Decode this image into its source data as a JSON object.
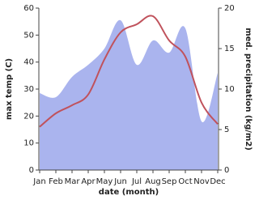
{
  "chart_data": {
    "type": "line",
    "x_label": "date (month)",
    "y_label": "max temp (C)",
    "y2_label": "med. precipitation (kg/m2)",
    "categories": [
      "Jan",
      "Feb",
      "Mar",
      "Apr",
      "May",
      "Jun",
      "Jul",
      "Aug",
      "Sep",
      "Oct",
      "Nov",
      "Dec"
    ],
    "series": [
      {
        "name": "med. precipitation",
        "type": "area",
        "axis": "y2",
        "color": "#aab4ee",
        "values": [
          9.5,
          9,
          11.5,
          13,
          15,
          18.5,
          13,
          16,
          14.5,
          17.5,
          6,
          12
        ]
      },
      {
        "name": "max temp",
        "type": "line",
        "color": "#c0525c",
        "values": [
          16,
          21,
          24,
          28,
          41,
          51,
          54,
          57,
          48,
          42,
          25,
          17
        ]
      }
    ],
    "ylim": [
      0,
      60
    ],
    "yticks": [
      0,
      10,
      20,
      30,
      40,
      50,
      60
    ],
    "y2lim": [
      0,
      20
    ],
    "y2ticks": [
      0,
      5,
      10,
      15,
      20
    ]
  }
}
